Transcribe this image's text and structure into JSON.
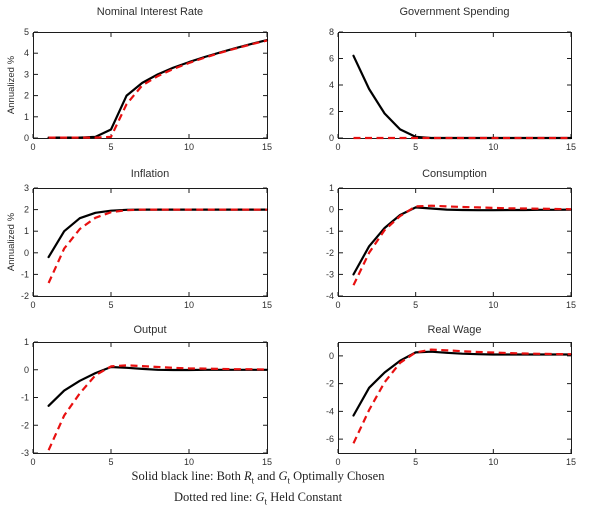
{
  "figure": {
    "colors": {
      "solid_series": "#000000",
      "dashed_series": "#e81010",
      "axis_frame": "#1c1c1c",
      "text": "#2e2e2e"
    },
    "caption": {
      "line1_parts": [
        {
          "text": "Solid black line: Both "
        },
        {
          "var": "R",
          "sub": "t"
        },
        {
          "text": " and "
        },
        {
          "var": "G",
          "sub": "t"
        },
        {
          "text": " Optimally Chosen"
        }
      ],
      "line2_parts": [
        {
          "text": "Dotted red line: "
        },
        {
          "var": "G",
          "sub": "t"
        },
        {
          "text": " Held Constant"
        }
      ]
    }
  },
  "chart_data": [
    {
      "type": "line",
      "title": "Nominal Interest Rate",
      "ylabel": "Annualized %",
      "x": [
        1,
        2,
        3,
        4,
        5,
        6,
        7,
        8,
        9,
        10,
        11,
        12,
        13,
        14,
        15
      ],
      "xlim": [
        0,
        15
      ],
      "ylim": [
        0,
        5
      ],
      "xticks": [
        0,
        5,
        10,
        15
      ],
      "yticks": [
        0,
        1,
        2,
        3,
        4,
        5
      ],
      "grid": false,
      "series": [
        {
          "name": "Both Rt and Gt Optimally Chosen",
          "line_style": "solid",
          "color": "#000000",
          "values": [
            0.02,
            0.02,
            0.02,
            0.05,
            0.4,
            2.0,
            2.6,
            3.0,
            3.32,
            3.58,
            3.82,
            4.04,
            4.24,
            4.44,
            4.62
          ]
        },
        {
          "name": "Gt Held Constant",
          "line_style": "dashed",
          "color": "#e81010",
          "values": [
            0.02,
            0.02,
            0.02,
            0.02,
            0.05,
            1.6,
            2.48,
            2.92,
            3.26,
            3.54,
            3.79,
            4.02,
            4.22,
            4.42,
            4.6
          ]
        }
      ]
    },
    {
      "type": "line",
      "title": "Government Spending",
      "ylabel": "",
      "x": [
        1,
        2,
        3,
        4,
        5,
        6,
        7,
        8,
        9,
        10,
        11,
        12,
        13,
        14,
        15
      ],
      "xlim": [
        0,
        15
      ],
      "ylim": [
        0,
        8
      ],
      "xticks": [
        0,
        5,
        10,
        15
      ],
      "yticks": [
        0,
        2,
        4,
        6,
        8
      ],
      "grid": false,
      "series": [
        {
          "name": "Both Rt and Gt Optimally Chosen",
          "line_style": "solid",
          "color": "#000000",
          "values": [
            6.2,
            3.7,
            1.85,
            0.65,
            0.08,
            0,
            0,
            0,
            0,
            0,
            0,
            0,
            0,
            0,
            0
          ]
        },
        {
          "name": "Gt Held Constant",
          "line_style": "dashed",
          "color": "#e81010",
          "values": [
            0,
            0,
            0,
            0,
            0,
            0,
            0,
            0,
            0,
            0,
            0,
            0,
            0,
            0,
            0
          ]
        }
      ]
    },
    {
      "type": "line",
      "title": "Inflation",
      "ylabel": "Annualized %",
      "x": [
        1,
        2,
        3,
        4,
        5,
        6,
        7,
        8,
        9,
        10,
        11,
        12,
        13,
        14,
        15
      ],
      "xlim": [
        0,
        15
      ],
      "ylim": [
        -2,
        3
      ],
      "xticks": [
        0,
        5,
        10,
        15
      ],
      "yticks": [
        -2,
        -1,
        0,
        1,
        2,
        3
      ],
      "grid": false,
      "series": [
        {
          "name": "Both Rt and Gt Optimally Chosen",
          "line_style": "solid",
          "color": "#000000",
          "values": [
            -0.2,
            1.0,
            1.6,
            1.85,
            1.95,
            1.99,
            2.0,
            2.0,
            2.0,
            2.0,
            2.0,
            2.0,
            2.0,
            2.0,
            2.0
          ]
        },
        {
          "name": "Gt Held Constant",
          "line_style": "dashed",
          "color": "#e81010",
          "values": [
            -1.4,
            0.2,
            1.1,
            1.62,
            1.88,
            1.97,
            2.0,
            2.0,
            2.0,
            2.0,
            2.0,
            2.0,
            2.0,
            2.0,
            2.0
          ]
        }
      ]
    },
    {
      "type": "line",
      "title": "Consumption",
      "ylabel": "",
      "x": [
        1,
        2,
        3,
        4,
        5,
        6,
        7,
        8,
        9,
        10,
        11,
        12,
        13,
        14,
        15
      ],
      "xlim": [
        0,
        15
      ],
      "ylim": [
        -4,
        1
      ],
      "xticks": [
        0,
        5,
        10,
        15
      ],
      "yticks": [
        -4,
        -3,
        -2,
        -1,
        0,
        1
      ],
      "grid": false,
      "series": [
        {
          "name": "Both Rt and Gt Optimally Chosen",
          "line_style": "solid",
          "color": "#000000",
          "values": [
            -3.0,
            -1.7,
            -0.85,
            -0.25,
            0.1,
            0.05,
            0.0,
            -0.02,
            -0.03,
            -0.03,
            -0.02,
            -0.02,
            -0.01,
            -0.01,
            0.0
          ]
        },
        {
          "name": "Gt Held Constant",
          "line_style": "dashed",
          "color": "#e81010",
          "values": [
            -3.5,
            -2.0,
            -0.95,
            -0.3,
            0.15,
            0.18,
            0.15,
            0.12,
            0.1,
            0.08,
            0.06,
            0.05,
            0.04,
            0.03,
            0.02
          ]
        }
      ]
    },
    {
      "type": "line",
      "title": "Output",
      "ylabel": "",
      "x": [
        1,
        2,
        3,
        4,
        5,
        6,
        7,
        8,
        9,
        10,
        11,
        12,
        13,
        14,
        15
      ],
      "xlim": [
        0,
        15
      ],
      "ylim": [
        -3,
        1
      ],
      "xticks": [
        0,
        5,
        10,
        15
      ],
      "yticks": [
        -3,
        -2,
        -1,
        0,
        1
      ],
      "grid": false,
      "series": [
        {
          "name": "Both Rt and Gt Optimally Chosen",
          "line_style": "solid",
          "color": "#000000",
          "values": [
            -1.3,
            -0.75,
            -0.4,
            -0.12,
            0.1,
            0.07,
            0.03,
            0.0,
            -0.01,
            -0.01,
            0.0,
            0.0,
            0.0,
            0.0,
            0.0
          ]
        },
        {
          "name": "Gt Held Constant",
          "line_style": "dashed",
          "color": "#e81010",
          "values": [
            -2.9,
            -1.65,
            -0.85,
            -0.2,
            0.12,
            0.16,
            0.13,
            0.1,
            0.07,
            0.05,
            0.04,
            0.03,
            0.02,
            0.02,
            0.01
          ]
        }
      ]
    },
    {
      "type": "line",
      "title": "Real Wage",
      "ylabel": "",
      "x": [
        1,
        2,
        3,
        4,
        5,
        6,
        7,
        8,
        9,
        10,
        11,
        12,
        13,
        14,
        15
      ],
      "xlim": [
        0,
        15
      ],
      "ylim": [
        -7,
        1
      ],
      "xticks": [
        0,
        5,
        10,
        15
      ],
      "yticks": [
        -6,
        -4,
        -2,
        0
      ],
      "grid": false,
      "series": [
        {
          "name": "Both Rt and Gt Optimally Chosen",
          "line_style": "solid",
          "color": "#000000",
          "values": [
            -4.3,
            -2.3,
            -1.2,
            -0.35,
            0.25,
            0.3,
            0.22,
            0.16,
            0.12,
            0.1,
            0.1,
            0.1,
            0.1,
            0.1,
            0.1
          ]
        },
        {
          "name": "Gt Held Constant",
          "line_style": "dashed",
          "color": "#e81010",
          "values": [
            -6.3,
            -3.9,
            -1.9,
            -0.5,
            0.25,
            0.45,
            0.4,
            0.34,
            0.28,
            0.24,
            0.2,
            0.17,
            0.15,
            0.13,
            0.12
          ]
        }
      ]
    }
  ]
}
